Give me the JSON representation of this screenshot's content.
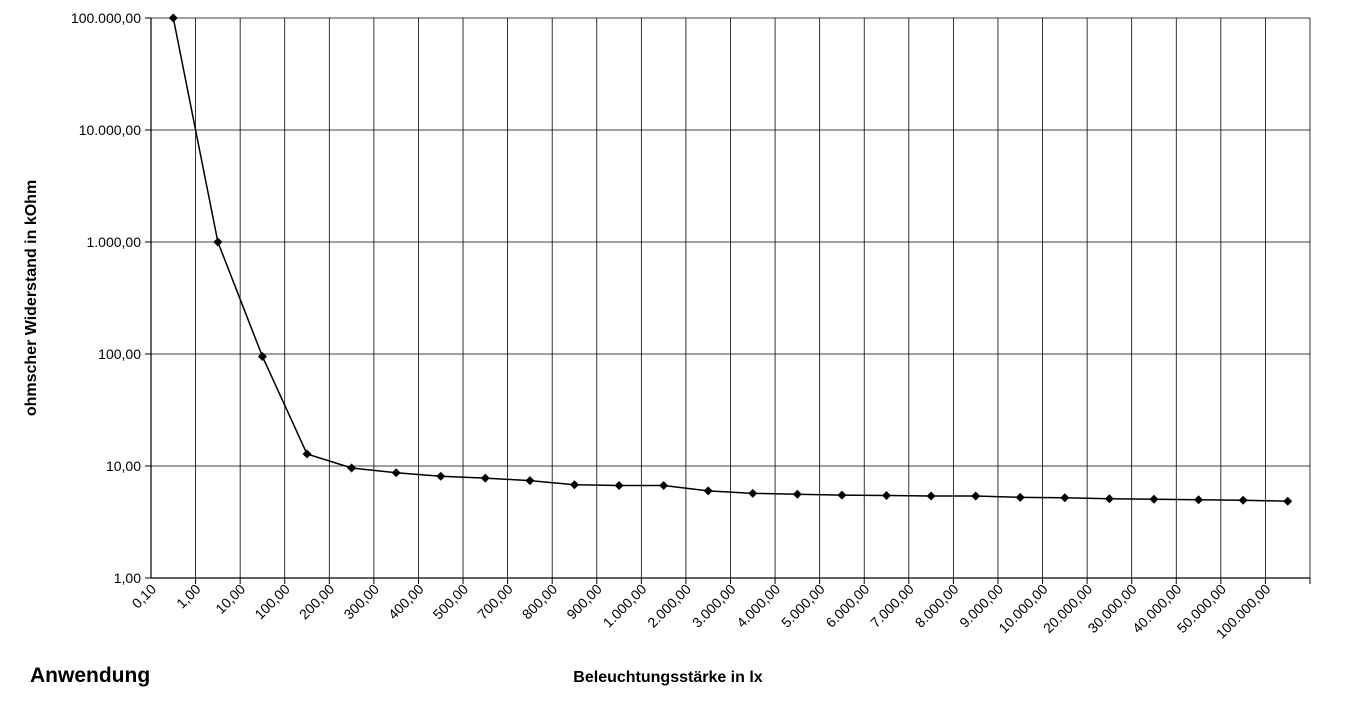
{
  "section_heading": "Anwendung",
  "chart_data": {
    "type": "line",
    "ylabel": "ohmscher Widerstand in kOhm",
    "xlabel": "Beleuchtungsstärke in lx",
    "yscale": "log",
    "ylim": [
      1,
      100000
    ],
    "y_ticks": [
      "1,00",
      "10,00",
      "100,00",
      "1.000,00",
      "10.000,00",
      "100.000,00"
    ],
    "grid": true,
    "categories": [
      "0,10",
      "1,00",
      "10,00",
      "100,00",
      "200,00",
      "300,00",
      "400,00",
      "500,00",
      "700,00",
      "800,00",
      "900,00",
      "1.000,00",
      "2.000,00",
      "3.000,00",
      "4.000,00",
      "5.000,00",
      "6.000,00",
      "7.000,00",
      "8.000,00",
      "9.000,00",
      "10.000,00",
      "20.000,00",
      "30.000,00",
      "40.000,00",
      "50.000,00",
      "100.000,00"
    ],
    "series": [
      {
        "values": [
          100000,
          1000,
          95,
          12.8,
          9.6,
          8.7,
          8.1,
          7.8,
          7.4,
          6.8,
          6.7,
          6.7,
          6.0,
          5.7,
          5.6,
          5.5,
          5.45,
          5.4,
          5.4,
          5.25,
          5.2,
          5.1,
          5.05,
          5.0,
          4.95,
          4.85
        ]
      }
    ],
    "colors": {
      "line": "#000000",
      "marker": "#000000",
      "grid": "#000000"
    }
  }
}
